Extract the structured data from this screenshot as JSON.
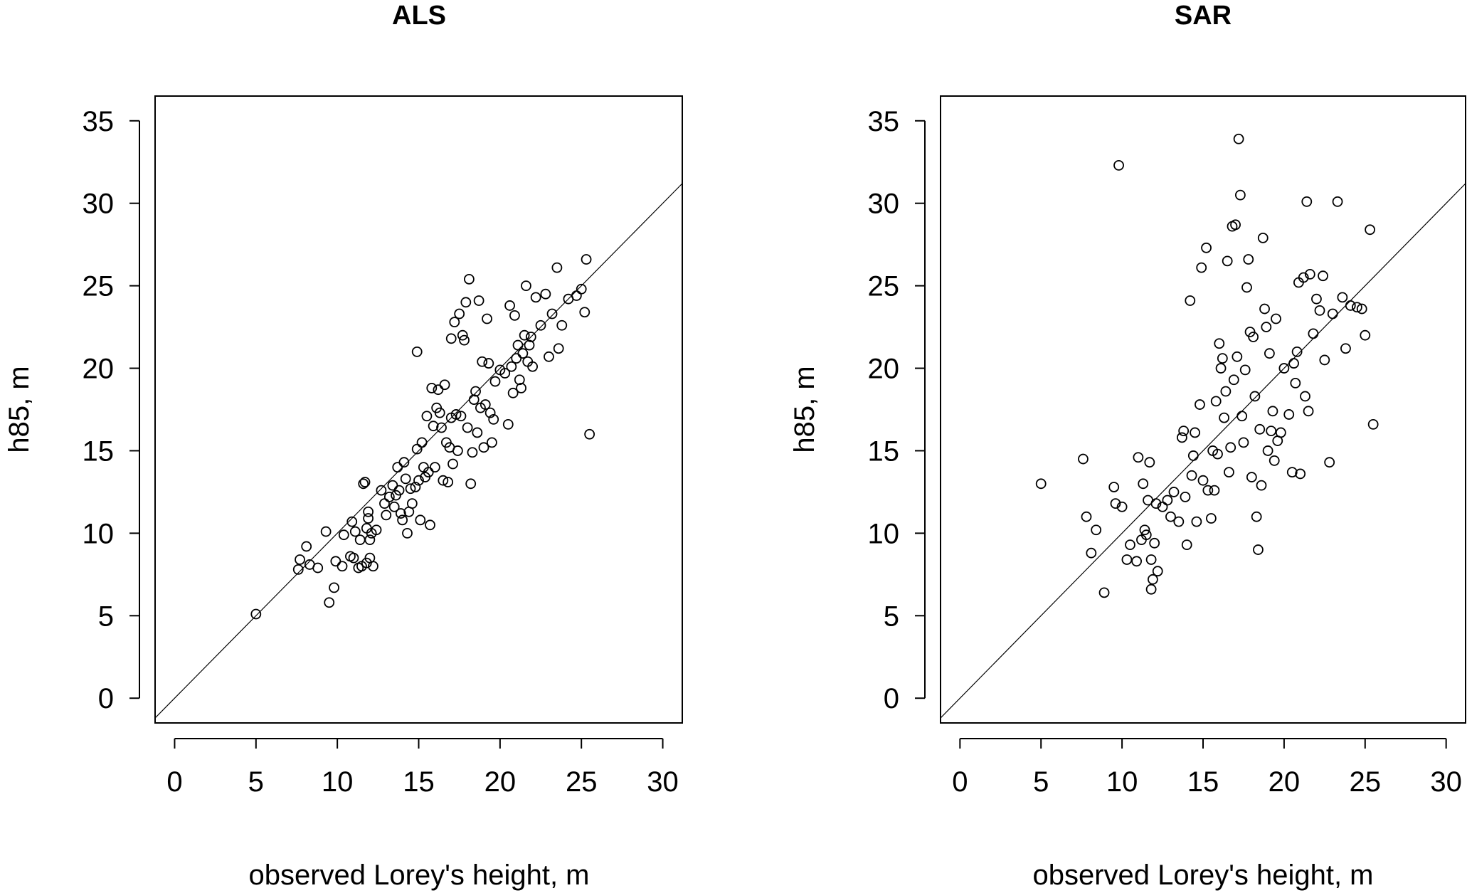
{
  "chart_data": [
    {
      "type": "scatter",
      "title": "ALS",
      "xlabel": "observed Lorey's height, m",
      "ylabel": "h85, m",
      "xlim": [
        -1.2,
        31.2
      ],
      "ylim": [
        -1.5,
        36.5
      ],
      "xticks": [
        0,
        5,
        10,
        15,
        20,
        25,
        30
      ],
      "yticks": [
        0,
        5,
        10,
        15,
        20,
        25,
        30,
        35
      ],
      "reference_line": "1:1",
      "points": [
        [
          5.0,
          5.1
        ],
        [
          7.6,
          7.8
        ],
        [
          7.7,
          8.4
        ],
        [
          8.1,
          9.2
        ],
        [
          8.3,
          8.1
        ],
        [
          8.8,
          7.9
        ],
        [
          9.3,
          10.1
        ],
        [
          9.5,
          5.8
        ],
        [
          9.8,
          6.7
        ],
        [
          9.9,
          8.3
        ],
        [
          10.3,
          8.0
        ],
        [
          10.4,
          9.9
        ],
        [
          10.8,
          8.6
        ],
        [
          10.9,
          10.7
        ],
        [
          11.0,
          8.5
        ],
        [
          11.1,
          10.1
        ],
        [
          11.3,
          7.9
        ],
        [
          11.4,
          9.6
        ],
        [
          11.5,
          8.0
        ],
        [
          11.6,
          13.0
        ],
        [
          11.7,
          13.1
        ],
        [
          11.8,
          8.2
        ],
        [
          11.8,
          10.3
        ],
        [
          11.9,
          10.9
        ],
        [
          11.9,
          11.3
        ],
        [
          12.0,
          8.5
        ],
        [
          12.0,
          9.6
        ],
        [
          12.1,
          10.0
        ],
        [
          12.2,
          8.0
        ],
        [
          12.4,
          10.2
        ],
        [
          12.7,
          12.6
        ],
        [
          12.9,
          11.8
        ],
        [
          13.0,
          11.1
        ],
        [
          13.2,
          12.2
        ],
        [
          13.4,
          12.9
        ],
        [
          13.5,
          11.6
        ],
        [
          13.6,
          12.3
        ],
        [
          13.7,
          14.0
        ],
        [
          13.8,
          12.6
        ],
        [
          13.9,
          11.2
        ],
        [
          14.0,
          10.8
        ],
        [
          14.1,
          14.3
        ],
        [
          14.2,
          13.3
        ],
        [
          14.3,
          10.0
        ],
        [
          14.4,
          11.3
        ],
        [
          14.5,
          12.7
        ],
        [
          14.6,
          11.8
        ],
        [
          14.8,
          12.8
        ],
        [
          14.9,
          15.1
        ],
        [
          14.9,
          21.0
        ],
        [
          15.0,
          13.2
        ],
        [
          15.1,
          10.8
        ],
        [
          15.2,
          15.5
        ],
        [
          15.3,
          14.0
        ],
        [
          15.4,
          13.4
        ],
        [
          15.5,
          17.1
        ],
        [
          15.6,
          13.7
        ],
        [
          15.7,
          10.5
        ],
        [
          15.8,
          18.8
        ],
        [
          15.9,
          16.5
        ],
        [
          16.0,
          14.0
        ],
        [
          16.1,
          17.6
        ],
        [
          16.2,
          18.7
        ],
        [
          16.3,
          17.3
        ],
        [
          16.4,
          16.4
        ],
        [
          16.5,
          13.2
        ],
        [
          16.6,
          19.0
        ],
        [
          16.7,
          15.5
        ],
        [
          16.8,
          13.1
        ],
        [
          16.9,
          15.2
        ],
        [
          17.0,
          17.0
        ],
        [
          17.0,
          21.8
        ],
        [
          17.1,
          14.2
        ],
        [
          17.2,
          22.8
        ],
        [
          17.3,
          17.2
        ],
        [
          17.4,
          15.0
        ],
        [
          17.5,
          23.3
        ],
        [
          17.6,
          17.1
        ],
        [
          17.7,
          22.0
        ],
        [
          17.8,
          21.7
        ],
        [
          17.9,
          24.0
        ],
        [
          18.0,
          16.4
        ],
        [
          18.1,
          25.4
        ],
        [
          18.2,
          13.0
        ],
        [
          18.3,
          14.9
        ],
        [
          18.4,
          18.1
        ],
        [
          18.5,
          18.6
        ],
        [
          18.6,
          16.1
        ],
        [
          18.7,
          24.1
        ],
        [
          18.8,
          17.6
        ],
        [
          18.9,
          20.4
        ],
        [
          19.0,
          15.2
        ],
        [
          19.1,
          17.8
        ],
        [
          19.2,
          23.0
        ],
        [
          19.3,
          20.3
        ],
        [
          19.4,
          17.3
        ],
        [
          19.5,
          15.5
        ],
        [
          19.6,
          16.9
        ],
        [
          19.7,
          19.2
        ],
        [
          20.0,
          19.9
        ],
        [
          20.3,
          19.7
        ],
        [
          20.5,
          16.6
        ],
        [
          20.6,
          23.8
        ],
        [
          20.7,
          20.1
        ],
        [
          20.8,
          18.5
        ],
        [
          20.9,
          23.2
        ],
        [
          21.0,
          20.6
        ],
        [
          21.1,
          21.4
        ],
        [
          21.2,
          19.3
        ],
        [
          21.3,
          18.8
        ],
        [
          21.4,
          20.9
        ],
        [
          21.5,
          22.0
        ],
        [
          21.6,
          25.0
        ],
        [
          21.7,
          20.4
        ],
        [
          21.8,
          21.4
        ],
        [
          21.9,
          21.9
        ],
        [
          22.0,
          20.1
        ],
        [
          22.2,
          24.3
        ],
        [
          22.5,
          22.6
        ],
        [
          22.8,
          24.5
        ],
        [
          23.0,
          20.7
        ],
        [
          23.2,
          23.3
        ],
        [
          23.5,
          26.1
        ],
        [
          23.6,
          21.2
        ],
        [
          23.8,
          22.6
        ],
        [
          24.2,
          24.2
        ],
        [
          24.7,
          24.4
        ],
        [
          25.0,
          24.8
        ],
        [
          25.2,
          23.4
        ],
        [
          25.3,
          26.6
        ],
        [
          25.5,
          16.0
        ]
      ]
    },
    {
      "type": "scatter",
      "title": "SAR",
      "xlabel": "observed Lorey's height, m",
      "ylabel": "h85, m",
      "xlim": [
        -1.2,
        31.2
      ],
      "ylim": [
        -1.5,
        36.5
      ],
      "xticks": [
        0,
        5,
        10,
        15,
        20,
        25,
        30
      ],
      "yticks": [
        0,
        5,
        10,
        15,
        20,
        25,
        30,
        35
      ],
      "reference_line": "1:1",
      "points": [
        [
          5.0,
          13.0
        ],
        [
          7.6,
          14.5
        ],
        [
          7.8,
          11.0
        ],
        [
          8.1,
          8.8
        ],
        [
          8.4,
          10.2
        ],
        [
          8.9,
          6.4
        ],
        [
          9.5,
          12.8
        ],
        [
          9.6,
          11.8
        ],
        [
          9.8,
          32.3
        ],
        [
          10.0,
          11.6
        ],
        [
          10.3,
          8.4
        ],
        [
          10.5,
          9.3
        ],
        [
          10.9,
          8.3
        ],
        [
          11.0,
          14.6
        ],
        [
          11.2,
          9.6
        ],
        [
          11.3,
          13.0
        ],
        [
          11.4,
          10.2
        ],
        [
          11.5,
          9.9
        ],
        [
          11.6,
          12.0
        ],
        [
          11.7,
          14.3
        ],
        [
          11.8,
          6.6
        ],
        [
          11.8,
          8.4
        ],
        [
          11.9,
          7.2
        ],
        [
          12.0,
          9.4
        ],
        [
          12.1,
          11.8
        ],
        [
          12.2,
          7.7
        ],
        [
          12.5,
          11.6
        ],
        [
          12.8,
          12.0
        ],
        [
          13.0,
          11.0
        ],
        [
          13.2,
          12.5
        ],
        [
          13.5,
          10.7
        ],
        [
          13.7,
          15.8
        ],
        [
          13.8,
          16.2
        ],
        [
          13.9,
          12.2
        ],
        [
          14.0,
          9.3
        ],
        [
          14.2,
          24.1
        ],
        [
          14.3,
          13.5
        ],
        [
          14.4,
          14.7
        ],
        [
          14.5,
          16.1
        ],
        [
          14.6,
          10.7
        ],
        [
          14.8,
          17.8
        ],
        [
          14.9,
          26.1
        ],
        [
          15.0,
          13.2
        ],
        [
          15.2,
          27.3
        ],
        [
          15.3,
          12.6
        ],
        [
          15.5,
          10.9
        ],
        [
          15.6,
          15.0
        ],
        [
          15.7,
          12.6
        ],
        [
          15.8,
          18.0
        ],
        [
          15.9,
          14.8
        ],
        [
          16.0,
          21.5
        ],
        [
          16.1,
          20.0
        ],
        [
          16.2,
          20.6
        ],
        [
          16.3,
          17.0
        ],
        [
          16.4,
          18.6
        ],
        [
          16.5,
          26.5
        ],
        [
          16.6,
          13.7
        ],
        [
          16.7,
          15.2
        ],
        [
          16.8,
          28.6
        ],
        [
          16.9,
          19.3
        ],
        [
          17.0,
          28.7
        ],
        [
          17.1,
          20.7
        ],
        [
          17.2,
          33.9
        ],
        [
          17.3,
          30.5
        ],
        [
          17.4,
          17.1
        ],
        [
          17.5,
          15.5
        ],
        [
          17.6,
          19.9
        ],
        [
          17.7,
          24.9
        ],
        [
          17.8,
          26.6
        ],
        [
          17.9,
          22.2
        ],
        [
          18.0,
          13.4
        ],
        [
          18.1,
          21.9
        ],
        [
          18.2,
          18.3
        ],
        [
          18.3,
          11.0
        ],
        [
          18.4,
          9.0
        ],
        [
          18.5,
          16.3
        ],
        [
          18.6,
          12.9
        ],
        [
          18.7,
          27.9
        ],
        [
          18.8,
          23.6
        ],
        [
          18.9,
          22.5
        ],
        [
          19.0,
          15.0
        ],
        [
          19.1,
          20.9
        ],
        [
          19.2,
          16.2
        ],
        [
          19.3,
          17.4
        ],
        [
          19.4,
          14.4
        ],
        [
          19.5,
          23.0
        ],
        [
          19.6,
          15.6
        ],
        [
          19.8,
          16.1
        ],
        [
          20.0,
          20.0
        ],
        [
          20.3,
          17.2
        ],
        [
          20.5,
          13.7
        ],
        [
          20.6,
          20.3
        ],
        [
          20.7,
          19.1
        ],
        [
          20.8,
          21.0
        ],
        [
          20.9,
          25.2
        ],
        [
          21.0,
          13.6
        ],
        [
          21.2,
          25.5
        ],
        [
          21.3,
          18.3
        ],
        [
          21.4,
          30.1
        ],
        [
          21.5,
          17.4
        ],
        [
          21.6,
          25.7
        ],
        [
          21.8,
          22.1
        ],
        [
          22.0,
          24.2
        ],
        [
          22.2,
          23.5
        ],
        [
          22.4,
          25.6
        ],
        [
          22.5,
          20.5
        ],
        [
          22.8,
          14.3
        ],
        [
          23.0,
          23.3
        ],
        [
          23.3,
          30.1
        ],
        [
          23.6,
          24.3
        ],
        [
          23.8,
          21.2
        ],
        [
          24.1,
          23.8
        ],
        [
          24.5,
          23.7
        ],
        [
          24.8,
          23.6
        ],
        [
          25.0,
          22.0
        ],
        [
          25.3,
          28.4
        ],
        [
          25.5,
          16.6
        ]
      ]
    }
  ]
}
